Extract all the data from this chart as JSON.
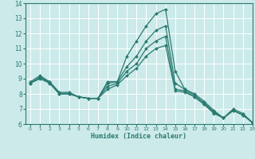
{
  "xlabel": "Humidex (Indice chaleur)",
  "bg_color": "#cceaea",
  "grid_color": "#ffffff",
  "line_color": "#2a7a70",
  "xlim": [
    -0.5,
    23
  ],
  "ylim": [
    6,
    14
  ],
  "xticks": [
    0,
    1,
    2,
    3,
    4,
    5,
    6,
    7,
    8,
    9,
    10,
    11,
    12,
    13,
    14,
    15,
    16,
    17,
    18,
    19,
    20,
    21,
    22,
    23
  ],
  "yticks": [
    6,
    7,
    8,
    9,
    10,
    11,
    12,
    13,
    14
  ],
  "lines": [
    {
      "x": [
        0,
        1,
        2,
        3,
        4,
        5,
        6,
        7,
        8,
        9,
        10,
        11,
        12,
        13,
        14,
        15,
        16,
        17,
        18,
        19,
        20,
        21,
        22,
        23
      ],
      "y": [
        8.8,
        9.2,
        8.8,
        8.1,
        8.1,
        7.8,
        7.7,
        7.7,
        8.8,
        8.8,
        10.5,
        11.5,
        12.5,
        13.3,
        13.6,
        9.5,
        8.3,
        8.0,
        7.5,
        6.9,
        6.4,
        7.0,
        6.7,
        6.1
      ]
    },
    {
      "x": [
        0,
        1,
        2,
        3,
        4,
        5,
        6,
        7,
        8,
        9,
        10,
        11,
        12,
        13,
        14,
        15,
        16,
        17,
        18,
        19,
        20,
        21,
        22,
        23
      ],
      "y": [
        8.7,
        9.1,
        8.8,
        8.0,
        8.0,
        7.8,
        7.7,
        7.7,
        8.7,
        8.8,
        9.8,
        10.5,
        11.5,
        12.2,
        12.5,
        8.7,
        8.3,
        7.9,
        7.4,
        6.8,
        6.4,
        6.9,
        6.6,
        6.1
      ]
    },
    {
      "x": [
        0,
        1,
        2,
        3,
        4,
        5,
        6,
        7,
        8,
        9,
        10,
        11,
        12,
        13,
        14,
        15,
        16,
        17,
        18,
        19,
        20,
        21,
        22,
        23
      ],
      "y": [
        8.7,
        9.1,
        8.7,
        8.0,
        8.0,
        7.8,
        7.7,
        7.7,
        8.5,
        8.7,
        9.5,
        10.0,
        11.0,
        11.5,
        11.8,
        8.3,
        8.2,
        7.8,
        7.3,
        6.8,
        6.4,
        6.9,
        6.6,
        6.1
      ]
    },
    {
      "x": [
        0,
        1,
        2,
        3,
        4,
        5,
        6,
        7,
        8,
        9,
        10,
        11,
        12,
        13,
        14,
        15,
        16,
        17,
        18,
        19,
        20,
        21,
        22,
        23
      ],
      "y": [
        8.7,
        9.0,
        8.7,
        8.0,
        8.0,
        7.8,
        7.7,
        7.7,
        8.3,
        8.6,
        9.2,
        9.7,
        10.5,
        11.0,
        11.2,
        8.2,
        8.1,
        7.8,
        7.3,
        6.7,
        6.4,
        6.9,
        6.6,
        6.1
      ]
    }
  ]
}
